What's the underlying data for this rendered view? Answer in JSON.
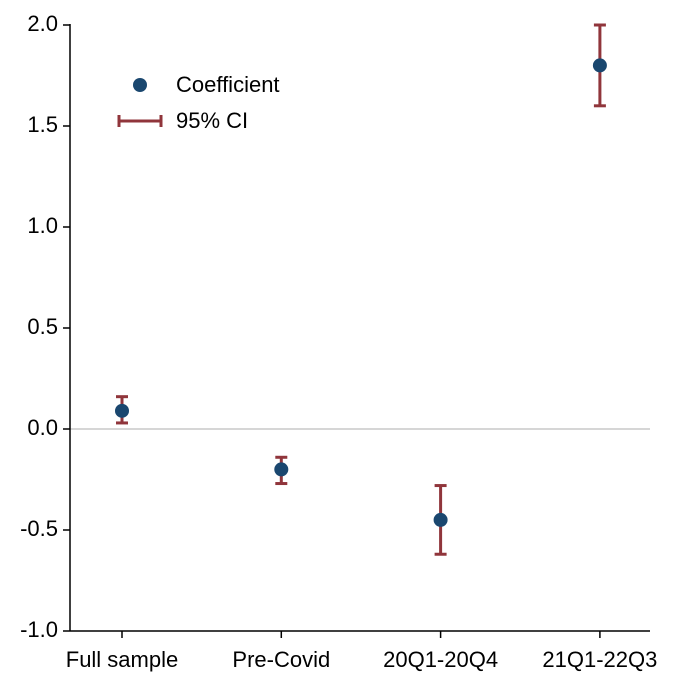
{
  "chart_data": {
    "type": "errorbar",
    "categories": [
      "Full sample",
      "Pre-Covid",
      "20Q1-20Q4",
      "21Q1-22Q3"
    ],
    "series": [
      {
        "name": "Coefficient",
        "color": "#1a476f",
        "values": [
          0.09,
          -0.2,
          -0.45,
          1.8
        ]
      },
      {
        "name": "95% CI",
        "color": "#90353b",
        "lower": [
          0.03,
          -0.27,
          -0.62,
          1.6
        ],
        "upper": [
          0.16,
          -0.14,
          -0.28,
          2.0
        ]
      }
    ],
    "ylim": [
      -1.0,
      2.0
    ],
    "yticks": [
      {
        "value": -1.0,
        "label": "-1.0"
      },
      -0.5,
      {
        "value": 0,
        "label": "0.0"
      },
      0.5,
      {
        "value": 1.0,
        "label": "1.0"
      },
      1.5,
      {
        "value": 2.0,
        "label": "2.0"
      }
    ],
    "zero_line": 0,
    "legend": "top-left"
  }
}
